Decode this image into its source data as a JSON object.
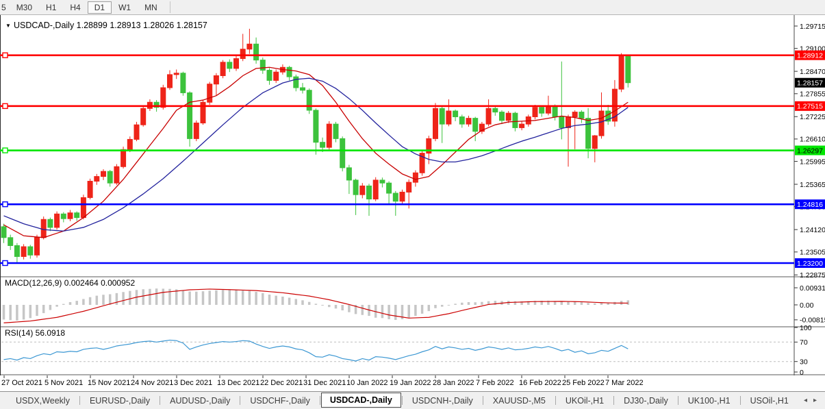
{
  "toolbar": {
    "timeframes": [
      "5",
      "M30",
      "H1",
      "H4",
      "D1",
      "W1",
      "MN"
    ],
    "active": "D1"
  },
  "chart": {
    "dropdown_arrow": "▼",
    "title": "USDCAD-,Daily",
    "quote_line": "1.28899 1.28913 1.28026 1.28157"
  },
  "chart_data": {
    "type": "candlestick",
    "symbol": "USDCAD-",
    "timeframe": "Daily",
    "quote": {
      "open": "1.28899",
      "high": "1.28913",
      "low": "1.28026",
      "close": "1.28157"
    },
    "bull_color": "#ee2419",
    "bear_color": "#3cc23c",
    "x_labels": [
      "27 Oct 2021",
      "5 Nov 2021",
      "15 Nov 2021",
      "24 Nov 2021",
      "3 Dec 2021",
      "13 Dec 2021",
      "22 Dec 2021",
      "31 Dec 2021",
      "10 Jan 2022",
      "19 Jan 2022",
      "28 Jan 2022",
      "7 Feb 2022",
      "16 Feb 2022",
      "25 Feb 2022",
      "7 Mar 2022"
    ],
    "y_axis_labels": [
      "1.29715",
      "1.29100",
      "1.28470",
      "1.27855",
      "1.27225",
      "1.26610",
      "1.25995",
      "1.25365",
      "1.24750",
      "1.24120",
      "1.23505",
      "1.22875"
    ],
    "hlines": [
      {
        "price": 1.28912,
        "label": "1.28912",
        "color": "#ff0000",
        "text_color": "#ffffff"
      },
      {
        "price": 1.27515,
        "label": "1.27515",
        "color": "#ff0000",
        "text_color": "#ffffff"
      },
      {
        "price": 1.26297,
        "label": "1.26297",
        "color": "#00e600",
        "text_color": "#000000"
      },
      {
        "price": 1.24816,
        "label": "1.24816",
        "color": "#0000ff",
        "text_color": "#ffffff"
      },
      {
        "price": 1.232,
        "label": "1.23200",
        "color": "#0000ff",
        "text_color": "#ffffff"
      }
    ],
    "current_price_badge": {
      "price": 1.28157,
      "label": "1.28157",
      "color": "#000000",
      "text_color": "#ffffff"
    },
    "candles": [
      [
        1.242,
        1.2428,
        1.2375,
        1.239
      ],
      [
        1.239,
        1.2398,
        1.2356,
        1.2368
      ],
      [
        1.2368,
        1.2375,
        1.232,
        1.2338
      ],
      [
        1.2338,
        1.2372,
        1.233,
        1.2365
      ],
      [
        1.2365,
        1.237,
        1.2332,
        1.2342
      ],
      [
        1.2342,
        1.2398,
        1.2335,
        1.239
      ],
      [
        1.239,
        1.2448,
        1.2385,
        1.244
      ],
      [
        1.244,
        1.2445,
        1.2408,
        1.2418
      ],
      [
        1.2418,
        1.2462,
        1.2412,
        1.2455
      ],
      [
        1.2455,
        1.246,
        1.2432,
        1.2442
      ],
      [
        1.2442,
        1.2466,
        1.2435,
        1.2458
      ],
      [
        1.2458,
        1.2462,
        1.2436,
        1.2445
      ],
      [
        1.2445,
        1.2508,
        1.244,
        1.25
      ],
      [
        1.25,
        1.2552,
        1.2495,
        1.2545
      ],
      [
        1.2545,
        1.2565,
        1.2535,
        1.2558
      ],
      [
        1.2558,
        1.2578,
        1.2548,
        1.2572
      ],
      [
        1.2572,
        1.2576,
        1.253,
        1.254
      ],
      [
        1.254,
        1.2592,
        1.2535,
        1.2585
      ],
      [
        1.2585,
        1.264,
        1.258,
        1.2632
      ],
      [
        1.2632,
        1.2668,
        1.2625,
        1.266
      ],
      [
        1.266,
        1.2708,
        1.2655,
        1.27
      ],
      [
        1.27,
        1.2752,
        1.2695,
        1.2745
      ],
      [
        1.2745,
        1.277,
        1.2738,
        1.2762
      ],
      [
        1.2762,
        1.2768,
        1.2736,
        1.2748
      ],
      [
        1.2748,
        1.281,
        1.2742,
        1.2802
      ],
      [
        1.2802,
        1.285,
        1.2796,
        1.2838
      ],
      [
        1.2838,
        1.2852,
        1.2826,
        1.2842
      ],
      [
        1.2842,
        1.2846,
        1.278,
        1.2788
      ],
      [
        1.2788,
        1.2792,
        1.264,
        1.2662
      ],
      [
        1.2662,
        1.2712,
        1.2655,
        1.2705
      ],
      [
        1.2705,
        1.2768,
        1.27,
        1.2762
      ],
      [
        1.2762,
        1.2818,
        1.2755,
        1.2812
      ],
      [
        1.2812,
        1.2842,
        1.278,
        1.2835
      ],
      [
        1.2835,
        1.2878,
        1.2828,
        1.2872
      ],
      [
        1.2872,
        1.288,
        1.2845,
        1.2855
      ],
      [
        1.2855,
        1.289,
        1.2848,
        1.2882
      ],
      [
        1.2882,
        1.295,
        1.2875,
        1.2908
      ],
      [
        1.2908,
        1.2964,
        1.2895,
        1.2922
      ],
      [
        1.2922,
        1.294,
        1.2868,
        1.2878
      ],
      [
        1.2878,
        1.2885,
        1.284,
        1.285
      ],
      [
        1.285,
        1.2856,
        1.281,
        1.2822
      ],
      [
        1.2822,
        1.2852,
        1.2815,
        1.2845
      ],
      [
        1.2845,
        1.2866,
        1.2838,
        1.2858
      ],
      [
        1.2858,
        1.2862,
        1.2822,
        1.2832
      ],
      [
        1.2832,
        1.2838,
        1.2792,
        1.2802
      ],
      [
        1.2802,
        1.2815,
        1.2786,
        1.2795
      ],
      [
        1.2795,
        1.28,
        1.273,
        1.274
      ],
      [
        1.274,
        1.2745,
        1.2618,
        1.2652
      ],
      [
        1.2652,
        1.2665,
        1.2625,
        1.2638
      ],
      [
        1.2638,
        1.271,
        1.2632,
        1.2702
      ],
      [
        1.2702,
        1.2708,
        1.2652,
        1.2662
      ],
      [
        1.2662,
        1.2668,
        1.2572,
        1.2582
      ],
      [
        1.2582,
        1.259,
        1.251,
        1.2548
      ],
      [
        1.2548,
        1.2552,
        1.2452,
        1.2508
      ],
      [
        1.2508,
        1.254,
        1.2498,
        1.2532
      ],
      [
        1.2532,
        1.2538,
        1.245,
        1.2496
      ],
      [
        1.2496,
        1.2556,
        1.249,
        1.2548
      ],
      [
        1.2548,
        1.2555,
        1.2528,
        1.254
      ],
      [
        1.254,
        1.2545,
        1.248,
        1.2512
      ],
      [
        1.2512,
        1.2518,
        1.245,
        1.249
      ],
      [
        1.249,
        1.2522,
        1.2482,
        1.2515
      ],
      [
        1.2515,
        1.255,
        1.247,
        1.2542
      ],
      [
        1.2542,
        1.2575,
        1.253,
        1.2568
      ],
      [
        1.2568,
        1.263,
        1.256,
        1.2622
      ],
      [
        1.2622,
        1.267,
        1.2592,
        1.2662
      ],
      [
        1.2662,
        1.276,
        1.2655,
        1.2745
      ],
      [
        1.2745,
        1.275,
        1.265,
        1.2702
      ],
      [
        1.2702,
        1.277,
        1.2696,
        1.2738
      ],
      [
        1.2738,
        1.2742,
        1.271,
        1.2722
      ],
      [
        1.2722,
        1.2728,
        1.2692,
        1.2702
      ],
      [
        1.2702,
        1.2725,
        1.2695,
        1.2718
      ],
      [
        1.2718,
        1.2722,
        1.2655,
        1.2682
      ],
      [
        1.2682,
        1.2708,
        1.2675,
        1.2702
      ],
      [
        1.2702,
        1.277,
        1.2696,
        1.2745
      ],
      [
        1.2745,
        1.275,
        1.2725,
        1.2735
      ],
      [
        1.2735,
        1.274,
        1.2702,
        1.2712
      ],
      [
        1.2712,
        1.2738,
        1.2705,
        1.2732
      ],
      [
        1.2732,
        1.2736,
        1.2682,
        1.2692
      ],
      [
        1.2692,
        1.271,
        1.2685,
        1.2702
      ],
      [
        1.2702,
        1.2728,
        1.2695,
        1.2722
      ],
      [
        1.2722,
        1.2755,
        1.2715,
        1.2748
      ],
      [
        1.2748,
        1.2752,
        1.2722,
        1.2732
      ],
      [
        1.2732,
        1.278,
        1.2726,
        1.2752
      ],
      [
        1.2752,
        1.2756,
        1.2712,
        1.2722
      ],
      [
        1.2722,
        1.2874,
        1.266,
        1.2692
      ],
      [
        1.2692,
        1.2728,
        1.2585,
        1.2722
      ],
      [
        1.2722,
        1.274,
        1.2633,
        1.2735
      ],
      [
        1.2735,
        1.274,
        1.2705,
        1.2718
      ],
      [
        1.2718,
        1.2746,
        1.2608,
        1.2635
      ],
      [
        1.2635,
        1.2672,
        1.2597,
        1.267
      ],
      [
        1.267,
        1.2789,
        1.2662,
        1.2738
      ],
      [
        1.2738,
        1.2755,
        1.27,
        1.271
      ],
      [
        1.271,
        1.2823,
        1.2695,
        1.2798
      ],
      [
        1.2798,
        1.2897,
        1.279,
        1.2892
      ],
      [
        1.28899,
        1.28913,
        1.28026,
        1.28157
      ]
    ],
    "ma_fast": {
      "color": "#c80000",
      "points": [
        [
          0,
          1.2425
        ],
        [
          3,
          1.2395
        ],
        [
          6,
          1.239
        ],
        [
          9,
          1.2408
        ],
        [
          12,
          1.2445
        ],
        [
          15,
          1.249
        ],
        [
          18,
          1.255
        ],
        [
          21,
          1.262
        ],
        [
          24,
          1.269
        ],
        [
          26,
          1.274
        ],
        [
          28,
          1.2762
        ],
        [
          30,
          1.2768
        ],
        [
          32,
          1.278
        ],
        [
          34,
          1.2805
        ],
        [
          36,
          1.2835
        ],
        [
          38,
          1.2855
        ],
        [
          40,
          1.2858
        ],
        [
          42,
          1.2852
        ],
        [
          44,
          1.2848
        ],
        [
          46,
          1.2838
        ],
        [
          48,
          1.2808
        ],
        [
          50,
          1.2762
        ],
        [
          52,
          1.271
        ],
        [
          54,
          1.2662
        ],
        [
          56,
          1.2622
        ],
        [
          58,
          1.2592
        ],
        [
          60,
          1.2565
        ],
        [
          62,
          1.255
        ],
        [
          64,
          1.2558
        ],
        [
          66,
          1.259
        ],
        [
          68,
          1.2625
        ],
        [
          70,
          1.266
        ],
        [
          72,
          1.2685
        ],
        [
          74,
          1.27
        ],
        [
          76,
          1.2708
        ],
        [
          78,
          1.271
        ],
        [
          80,
          1.2712
        ],
        [
          82,
          1.2718
        ],
        [
          84,
          1.2724
        ],
        [
          86,
          1.272
        ],
        [
          88,
          1.2712
        ],
        [
          90,
          1.2718
        ],
        [
          92,
          1.2738
        ],
        [
          94,
          1.2762
        ]
      ]
    },
    "ma_slow": {
      "color": "#22229d",
      "points": [
        [
          0,
          1.245
        ],
        [
          3,
          1.2428
        ],
        [
          6,
          1.2412
        ],
        [
          9,
          1.2408
        ],
        [
          12,
          1.2418
        ],
        [
          15,
          1.244
        ],
        [
          18,
          1.2472
        ],
        [
          21,
          1.251
        ],
        [
          24,
          1.2552
        ],
        [
          27,
          1.26
        ],
        [
          30,
          1.265
        ],
        [
          33,
          1.27
        ],
        [
          36,
          1.2748
        ],
        [
          39,
          1.2788
        ],
        [
          42,
          1.2815
        ],
        [
          44,
          1.2825
        ],
        [
          46,
          1.2828
        ],
        [
          48,
          1.282
        ],
        [
          50,
          1.28
        ],
        [
          52,
          1.2772
        ],
        [
          54,
          1.274
        ],
        [
          56,
          1.2705
        ],
        [
          58,
          1.2672
        ],
        [
          60,
          1.264
        ],
        [
          62,
          1.262
        ],
        [
          64,
          1.2605
        ],
        [
          66,
          1.2598
        ],
        [
          68,
          1.2598
        ],
        [
          70,
          1.2605
        ],
        [
          72,
          1.2615
        ],
        [
          74,
          1.2628
        ],
        [
          76,
          1.2642
        ],
        [
          78,
          1.2655
        ],
        [
          80,
          1.2666
        ],
        [
          82,
          1.2678
        ],
        [
          84,
          1.269
        ],
        [
          86,
          1.2698
        ],
        [
          88,
          1.2702
        ],
        [
          90,
          1.2708
        ],
        [
          92,
          1.2722
        ],
        [
          94,
          1.2748
        ]
      ]
    },
    "macd": {
      "label": "MACD(12,26,9) 0.002464 0.000952",
      "axis_labels": [
        "0.00931",
        "0.00",
        "-0.00815"
      ],
      "hist_color": "#c6c6c6",
      "signal_color": "#cc0000",
      "histogram": [
        -0.008,
        -0.0083,
        -0.0085,
        -0.008,
        -0.0072,
        -0.006,
        -0.0045,
        -0.0028,
        -0.001,
        0.0005,
        0.0015,
        0.0022,
        0.0032,
        0.0042,
        0.005,
        0.0055,
        0.0058,
        0.0064,
        0.007,
        0.0076,
        0.0081,
        0.0085,
        0.0087,
        0.0089,
        0.0088,
        0.0087,
        0.0085,
        0.008,
        0.0073,
        0.0072,
        0.0074,
        0.0077,
        0.0079,
        0.0081,
        0.0082,
        0.008,
        0.0078,
        0.0076,
        0.0071,
        0.0064,
        0.0056,
        0.005,
        0.0045,
        0.0039,
        0.0032,
        0.0025,
        0.0016,
        0.0006,
        -0.0004,
        -0.0012,
        -0.002,
        -0.003,
        -0.004,
        -0.005,
        -0.0055,
        -0.006,
        -0.007,
        -0.0072,
        -0.0078,
        -0.0082,
        -0.0078,
        -0.007,
        -0.006,
        -0.0048,
        -0.0034,
        -0.0018,
        -0.001,
        0.0,
        0.0006,
        0.0012,
        0.0015,
        0.0014,
        0.0016,
        0.002,
        0.0022,
        0.0021,
        0.0022,
        0.002,
        0.0019,
        0.002,
        0.0022,
        0.0022,
        0.0023,
        0.0021,
        0.0017,
        0.0018,
        0.0018,
        0.0016,
        0.001,
        0.0008,
        0.0012,
        0.0012,
        0.0016,
        0.0022,
        0.002464
      ],
      "signal_points": [
        [
          0,
          -0.0098
        ],
        [
          4,
          -0.0088
        ],
        [
          8,
          -0.0068
        ],
        [
          12,
          -0.0035
        ],
        [
          16,
          0.0005
        ],
        [
          20,
          0.0042
        ],
        [
          24,
          0.0068
        ],
        [
          28,
          0.0082
        ],
        [
          31,
          0.0086
        ],
        [
          34,
          0.0083
        ],
        [
          38,
          0.0078
        ],
        [
          42,
          0.0066
        ],
        [
          46,
          0.0048
        ],
        [
          49,
          0.0028
        ],
        [
          52,
          0.0002
        ],
        [
          55,
          -0.0028
        ],
        [
          58,
          -0.0055
        ],
        [
          61,
          -0.0072
        ],
        [
          64,
          -0.0068
        ],
        [
          67,
          -0.0048
        ],
        [
          70,
          -0.0022
        ],
        [
          73,
          0.0002
        ],
        [
          76,
          0.0013
        ],
        [
          80,
          0.0018
        ],
        [
          84,
          0.0019
        ],
        [
          87,
          0.0017
        ],
        [
          90,
          0.0012
        ],
        [
          92,
          0.001
        ],
        [
          94,
          0.000952
        ]
      ]
    },
    "rsi": {
      "label": "RSI(14) 56.0918",
      "axis_labels": [
        "100",
        "70",
        "30",
        "0"
      ],
      "levels": [
        70,
        30
      ],
      "line_color": "#3b97d3",
      "values": [
        34,
        36,
        33,
        38,
        36,
        42,
        46,
        44,
        50,
        49,
        51,
        50,
        55,
        57,
        58,
        55,
        58,
        62,
        64,
        66,
        69,
        71,
        72,
        70,
        72,
        74,
        73,
        68,
        55,
        60,
        64,
        67,
        69,
        71,
        70,
        71,
        73,
        72,
        66,
        61,
        57,
        60,
        62,
        60,
        56,
        54,
        48,
        40,
        39,
        44,
        41,
        36,
        34,
        31,
        36,
        33,
        40,
        39,
        37,
        34,
        38,
        42,
        45,
        50,
        54,
        61,
        56,
        60,
        58,
        55,
        57,
        53,
        56,
        60,
        58,
        55,
        58,
        54,
        55,
        57,
        60,
        58,
        61,
        57,
        52,
        55,
        49,
        52,
        46,
        48,
        53,
        51,
        57,
        63,
        56.09
      ]
    }
  },
  "tabs": {
    "items": [
      "USDX,Weekly",
      "EURUSD-,Daily",
      "AUDUSD-,Daily",
      "USDCHF-,Daily",
      "USDCAD-,Daily",
      "USDCNH-,Daily",
      "XAUUSD-,M5",
      "UKOil-,H1",
      "DJ30-,Daily",
      "UK100-,H1",
      "USOil-,H1"
    ],
    "active": "USDCAD-,Daily",
    "nav_left": "◂",
    "nav_right": "▸"
  }
}
